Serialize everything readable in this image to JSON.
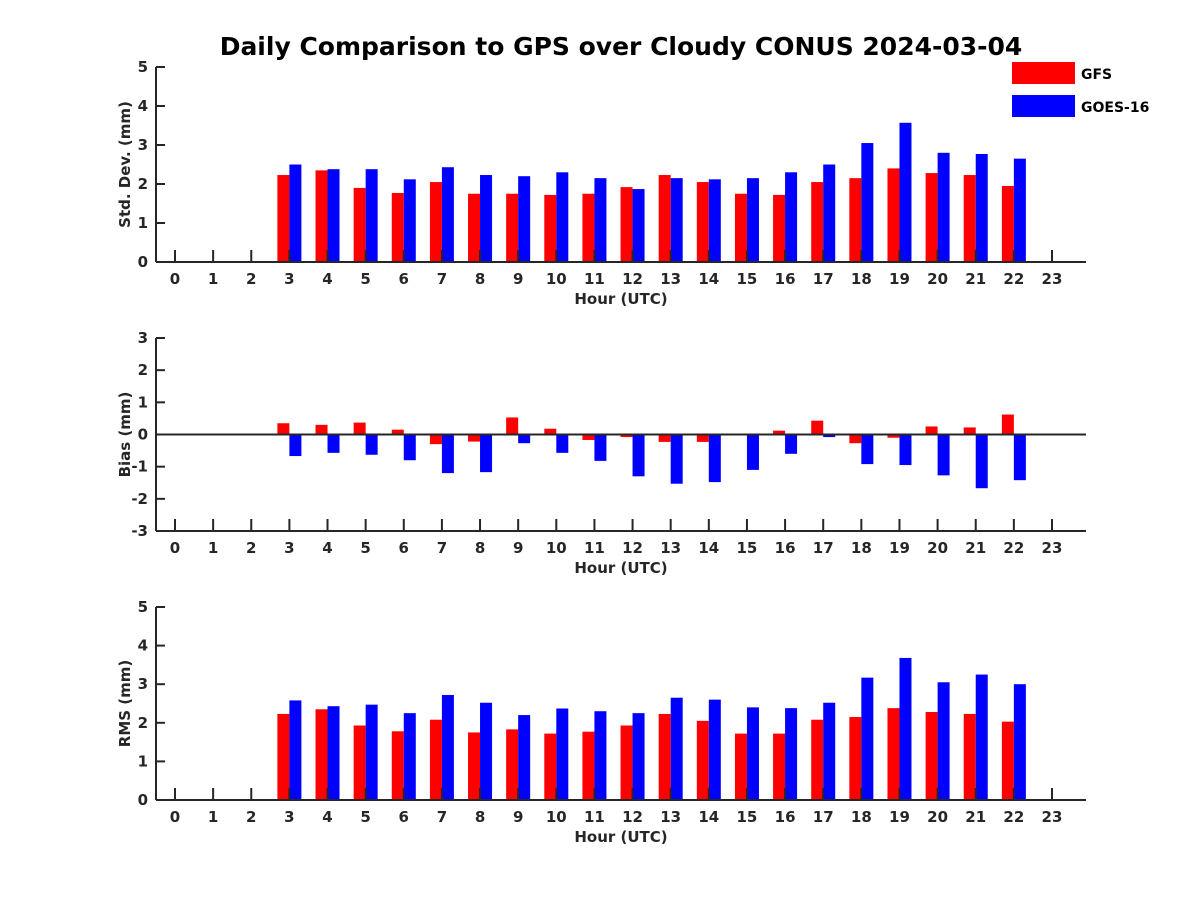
{
  "figure_title": "Daily Comparison to GPS over Cloudy CONUS 2024-03-04",
  "legend": {
    "placement": "top-right",
    "items": [
      {
        "label": "GFS",
        "color": "#ff0000"
      },
      {
        "label": "GOES-16",
        "color": "#0000ff"
      }
    ]
  },
  "chart_data": [
    {
      "type": "bar",
      "title": "Daily Comparison to GPS over Cloudy CONUS 2024-03-04",
      "xlabel": "Hour (UTC)",
      "ylabel": "Std. Dev. (mm)",
      "ylim": [
        0,
        5
      ],
      "yticks": [
        0,
        1,
        2,
        3,
        4,
        5
      ],
      "categories": [
        0,
        1,
        2,
        3,
        4,
        5,
        6,
        7,
        8,
        9,
        10,
        11,
        12,
        13,
        14,
        15,
        16,
        17,
        18,
        19,
        20,
        21,
        22,
        23
      ],
      "series": [
        {
          "name": "GFS",
          "color": "#ff0000",
          "values": [
            null,
            null,
            null,
            2.23,
            2.35,
            1.9,
            1.77,
            2.05,
            1.75,
            1.75,
            1.72,
            1.75,
            1.92,
            2.23,
            2.05,
            1.75,
            1.72,
            2.05,
            2.15,
            2.4,
            2.28,
            2.23,
            1.95,
            null
          ]
        },
        {
          "name": "GOES-16",
          "color": "#0000ff",
          "values": [
            null,
            null,
            null,
            2.5,
            2.38,
            2.38,
            2.12,
            2.43,
            2.23,
            2.2,
            2.3,
            2.15,
            1.87,
            2.15,
            2.12,
            2.15,
            2.3,
            2.5,
            3.05,
            3.57,
            2.8,
            2.77,
            2.65,
            null
          ]
        }
      ]
    },
    {
      "type": "bar",
      "xlabel": "Hour (UTC)",
      "ylabel": "Bias (mm)",
      "ylim": [
        -3,
        3
      ],
      "yticks": [
        -3,
        -2,
        -1,
        0,
        1,
        2,
        3
      ],
      "zero_line": true,
      "categories": [
        0,
        1,
        2,
        3,
        4,
        5,
        6,
        7,
        8,
        9,
        10,
        11,
        12,
        13,
        14,
        15,
        16,
        17,
        18,
        19,
        20,
        21,
        22,
        23
      ],
      "series": [
        {
          "name": "GFS",
          "color": "#ff0000",
          "values": [
            null,
            null,
            null,
            0.35,
            0.3,
            0.37,
            0.15,
            -0.3,
            -0.22,
            0.53,
            0.18,
            -0.17,
            -0.08,
            -0.23,
            -0.23,
            0.0,
            0.12,
            0.43,
            -0.27,
            -0.1,
            0.25,
            0.22,
            0.62,
            null
          ]
        },
        {
          "name": "GOES-16",
          "color": "#0000ff",
          "values": [
            null,
            null,
            null,
            -0.67,
            -0.57,
            -0.63,
            -0.8,
            -1.2,
            -1.17,
            -0.27,
            -0.57,
            -0.82,
            -1.3,
            -1.53,
            -1.48,
            -1.1,
            -0.6,
            -0.08,
            -0.92,
            -0.95,
            -1.27,
            -1.67,
            -1.42,
            null
          ]
        }
      ]
    },
    {
      "type": "bar",
      "xlabel": "Hour (UTC)",
      "ylabel": "RMS (mm)",
      "ylim": [
        0,
        5
      ],
      "yticks": [
        0,
        1,
        2,
        3,
        4,
        5
      ],
      "categories": [
        0,
        1,
        2,
        3,
        4,
        5,
        6,
        7,
        8,
        9,
        10,
        11,
        12,
        13,
        14,
        15,
        16,
        17,
        18,
        19,
        20,
        21,
        22,
        23
      ],
      "series": [
        {
          "name": "GFS",
          "color": "#ff0000",
          "values": [
            null,
            null,
            null,
            2.23,
            2.35,
            1.93,
            1.78,
            2.08,
            1.75,
            1.83,
            1.72,
            1.77,
            1.93,
            2.23,
            2.05,
            1.72,
            1.72,
            2.08,
            2.15,
            2.38,
            2.28,
            2.23,
            2.03,
            null
          ]
        },
        {
          "name": "GOES-16",
          "color": "#0000ff",
          "values": [
            null,
            null,
            null,
            2.58,
            2.43,
            2.47,
            2.25,
            2.72,
            2.52,
            2.2,
            2.37,
            2.3,
            2.25,
            2.65,
            2.6,
            2.4,
            2.38,
            2.52,
            3.17,
            3.68,
            3.05,
            3.25,
            3.0,
            null
          ]
        }
      ]
    }
  ]
}
